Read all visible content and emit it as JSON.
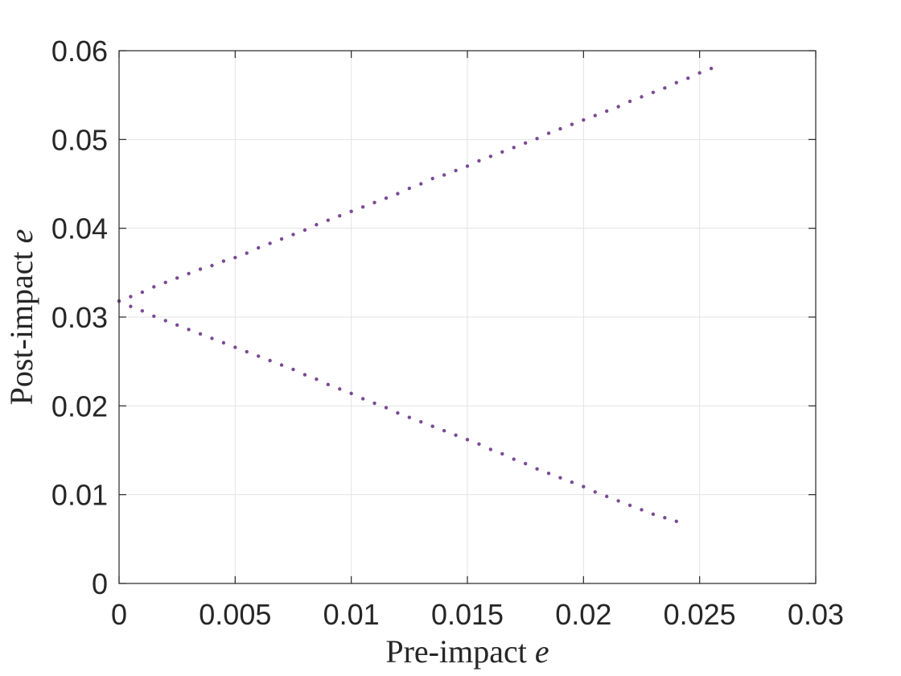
{
  "chart_data": {
    "type": "scatter",
    "title": "",
    "xlabel": {
      "text": "Pre-impact ",
      "var": "e"
    },
    "ylabel": {
      "text": "Post-impact ",
      "var": "e"
    },
    "xlim": [
      0,
      0.03
    ],
    "ylim": [
      0,
      0.06
    ],
    "xticks": [
      0,
      0.005,
      0.01,
      0.015,
      0.02,
      0.025,
      0.03
    ],
    "yticks": [
      0,
      0.01,
      0.02,
      0.03,
      0.04,
      0.05,
      0.06
    ],
    "xtick_labels": [
      "0",
      "0.005",
      "0.01",
      "0.015",
      "0.02",
      "0.025",
      "0.03"
    ],
    "ytick_labels": [
      "0",
      "0.01",
      "0.02",
      "0.03",
      "0.04",
      "0.05",
      "0.06"
    ],
    "grid": true,
    "series": [
      {
        "marker_color": "#7a4a94",
        "x": [
          0,
          0.0005,
          0.001,
          0.0015,
          0.002,
          0.0025,
          0.003,
          0.0035,
          0.004,
          0.0045,
          0.005,
          0.0055,
          0.006,
          0.0065,
          0.007,
          0.0075,
          0.008,
          0.0085,
          0.009,
          0.0095,
          0.01,
          0.0105,
          0.011,
          0.0115,
          0.012,
          0.0125,
          0.013,
          0.0135,
          0.014,
          0.0145,
          0.015,
          0.0155,
          0.016,
          0.0165,
          0.017,
          0.0175,
          0.018,
          0.0185,
          0.019,
          0.0195,
          0.02,
          0.0205,
          0.021,
          0.0215,
          0.022,
          0.0225,
          0.023,
          0.0235,
          0.024,
          0.0245,
          0.025,
          0.0255
        ],
        "y": [
          0.0318,
          0.0323,
          0.0328,
          0.0334,
          0.0339,
          0.0344,
          0.0349,
          0.0354,
          0.0358,
          0.0363,
          0.0367,
          0.0372,
          0.0378,
          0.0383,
          0.0388,
          0.0393,
          0.0398,
          0.0404,
          0.0409,
          0.0414,
          0.0419,
          0.0424,
          0.0429,
          0.0434,
          0.0439,
          0.0445,
          0.045,
          0.0456,
          0.046,
          0.0465,
          0.047,
          0.0476,
          0.0481,
          0.0486,
          0.0491,
          0.0496,
          0.0501,
          0.0507,
          0.0512,
          0.0517,
          0.0522,
          0.0527,
          0.0532,
          0.0537,
          0.0543,
          0.0548,
          0.0553,
          0.0558,
          0.0564,
          0.0569,
          0.0575,
          0.058
        ]
      },
      {
        "marker_color": "#7a4a94",
        "x": [
          0,
          0.0005,
          0.001,
          0.0015,
          0.002,
          0.0025,
          0.003,
          0.0035,
          0.004,
          0.0045,
          0.005,
          0.0055,
          0.006,
          0.0065,
          0.007,
          0.0075,
          0.008,
          0.0085,
          0.009,
          0.0095,
          0.01,
          0.0105,
          0.011,
          0.0115,
          0.012,
          0.0125,
          0.013,
          0.0135,
          0.014,
          0.0145,
          0.015,
          0.0155,
          0.016,
          0.0165,
          0.017,
          0.0175,
          0.018,
          0.0185,
          0.019,
          0.0195,
          0.02,
          0.0205,
          0.021,
          0.0215,
          0.022,
          0.0225,
          0.023,
          0.0235,
          0.024
        ],
        "y": [
          0.0318,
          0.0312,
          0.0307,
          0.0301,
          0.0296,
          0.0291,
          0.0286,
          0.0281,
          0.0276,
          0.0271,
          0.0266,
          0.0261,
          0.0256,
          0.0251,
          0.0246,
          0.0241,
          0.0235,
          0.023,
          0.0224,
          0.0219,
          0.0214,
          0.0208,
          0.0203,
          0.0198,
          0.0192,
          0.0187,
          0.0182,
          0.0177,
          0.0172,
          0.0167,
          0.0162,
          0.0157,
          0.0151,
          0.0146,
          0.014,
          0.0135,
          0.0129,
          0.0124,
          0.0119,
          0.0114,
          0.0109,
          0.0103,
          0.0098,
          0.0093,
          0.0088,
          0.0083,
          0.0078,
          0.0074,
          0.007
        ]
      }
    ]
  }
}
